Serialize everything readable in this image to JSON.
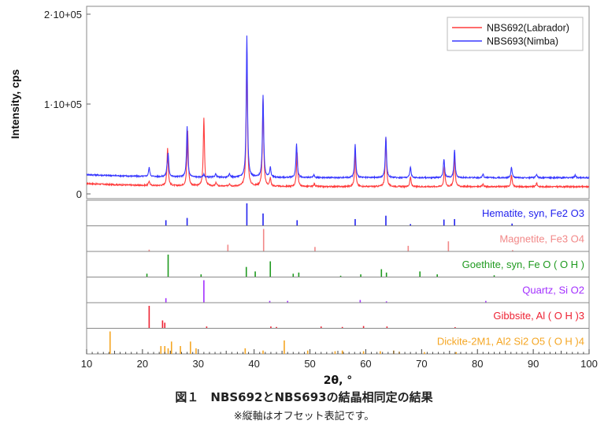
{
  "chart_data": {
    "type": "line",
    "xlabel": "2θ, °",
    "ylabel": "Intensity, cps",
    "xlim": [
      10,
      100
    ],
    "ylim": [
      0,
      200000
    ],
    "x_ticks": [
      10,
      20,
      30,
      40,
      50,
      60,
      70,
      80,
      90,
      100
    ],
    "y_ticks": [
      {
        "value": 0,
        "label": "0"
      },
      {
        "value": 100000,
        "label": "1·10+05"
      },
      {
        "value": 200000,
        "label": "2·10+05"
      }
    ],
    "legend_position": "top-right",
    "series": [
      {
        "name": "NBS692(Labrador)",
        "color": "#ff3b3b",
        "baseline": 8000,
        "peaks": [
          {
            "x": 21.2,
            "y": 5000
          },
          {
            "x": 24.5,
            "y": 42000
          },
          {
            "x": 28.0,
            "y": 7000
          },
          {
            "x": 28.1,
            "y": 57000
          },
          {
            "x": 31.0,
            "y": 76000
          },
          {
            "x": 33.2,
            "y": 4000
          },
          {
            "x": 35.6,
            "y": 3000
          },
          {
            "x": 38.7,
            "y": 152000
          },
          {
            "x": 41.6,
            "y": 98000
          },
          {
            "x": 42.9,
            "y": 9000
          },
          {
            "x": 47.7,
            "y": 38000
          },
          {
            "x": 50.8,
            "y": 3000
          },
          {
            "x": 58.1,
            "y": 38000
          },
          {
            "x": 63.6,
            "y": 55000
          },
          {
            "x": 68.0,
            "y": 11000
          },
          {
            "x": 74.1,
            "y": 22000
          },
          {
            "x": 75.9,
            "y": 35000
          },
          {
            "x": 81.0,
            "y": 3000
          },
          {
            "x": 86.1,
            "y": 13000
          },
          {
            "x": 90.6,
            "y": 4000
          }
        ]
      },
      {
        "name": "NBS693(Nimba)",
        "color": "#3838ff",
        "baseline": 18000,
        "peaks": [
          {
            "x": 21.2,
            "y": 10000
          },
          {
            "x": 24.4,
            "y": 7000
          },
          {
            "x": 24.6,
            "y": 24000
          },
          {
            "x": 28.0,
            "y": 56000
          },
          {
            "x": 31.0,
            "y": 3000
          },
          {
            "x": 33.1,
            "y": 4000
          },
          {
            "x": 35.6,
            "y": 4000
          },
          {
            "x": 38.7,
            "y": 158000
          },
          {
            "x": 41.6,
            "y": 92000
          },
          {
            "x": 42.9,
            "y": 11000
          },
          {
            "x": 47.6,
            "y": 38000
          },
          {
            "x": 50.7,
            "y": 3000
          },
          {
            "x": 58.1,
            "y": 37000
          },
          {
            "x": 63.6,
            "y": 46000
          },
          {
            "x": 68.0,
            "y": 12000
          },
          {
            "x": 74.0,
            "y": 21000
          },
          {
            "x": 75.9,
            "y": 31000
          },
          {
            "x": 81.0,
            "y": 4000
          },
          {
            "x": 86.1,
            "y": 12000
          },
          {
            "x": 90.6,
            "y": 4000
          },
          {
            "x": 97.5,
            "y": 3000
          }
        ]
      }
    ],
    "reference_phases": [
      {
        "label": "Hematite, syn, Fe2 O3",
        "color": "#2222ee",
        "lines": [
          [
            24.2,
            0.25
          ],
          [
            28.0,
            0.35
          ],
          [
            38.7,
            1.0
          ],
          [
            41.6,
            0.55
          ],
          [
            47.7,
            0.25
          ],
          [
            58.1,
            0.3
          ],
          [
            63.6,
            0.45
          ],
          [
            68.0,
            0.08
          ],
          [
            74.0,
            0.28
          ],
          [
            75.9,
            0.3
          ],
          [
            86.2,
            0.1
          ]
        ]
      },
      {
        "label": "Magnetite, Fe3 O4",
        "color": "#f28888",
        "lines": [
          [
            21.2,
            0.08
          ],
          [
            35.3,
            0.3
          ],
          [
            41.7,
            1.0
          ],
          [
            50.9,
            0.2
          ],
          [
            67.6,
            0.25
          ],
          [
            74.8,
            0.45
          ],
          [
            86.3,
            0.06
          ]
        ]
      },
      {
        "label": "Goethite, syn, Fe O ( O H )",
        "color": "#1f9a1f",
        "lines": [
          [
            20.8,
            0.15
          ],
          [
            24.6,
            1.0
          ],
          [
            30.5,
            0.12
          ],
          [
            38.6,
            0.45
          ],
          [
            40.2,
            0.25
          ],
          [
            42.9,
            0.7
          ],
          [
            47.0,
            0.15
          ],
          [
            48.0,
            0.2
          ],
          [
            55.5,
            0.06
          ],
          [
            59.1,
            0.12
          ],
          [
            62.8,
            0.35
          ],
          [
            63.7,
            0.2
          ],
          [
            69.7,
            0.25
          ],
          [
            72.8,
            0.12
          ],
          [
            83.0,
            0.08
          ]
        ]
      },
      {
        "label": "Quartz, Si O2",
        "color": "#a330ff",
        "lines": [
          [
            24.2,
            0.2
          ],
          [
            31.0,
            1.0
          ],
          [
            42.8,
            0.08
          ],
          [
            46.0,
            0.08
          ],
          [
            59.0,
            0.12
          ],
          [
            63.7,
            0.06
          ],
          [
            81.5,
            0.08
          ]
        ]
      },
      {
        "label": "Gibbsite, Al ( O H )3",
        "color": "#ee2233",
        "lines": [
          [
            21.2,
            1.0
          ],
          [
            23.6,
            0.35
          ],
          [
            24.0,
            0.25
          ],
          [
            31.5,
            0.08
          ],
          [
            43.0,
            0.08
          ],
          [
            44.0,
            0.06
          ],
          [
            52.0,
            0.08
          ],
          [
            55.8,
            0.06
          ],
          [
            59.6,
            0.1
          ],
          [
            63.8,
            0.08
          ],
          [
            76.0,
            0.05
          ]
        ]
      },
      {
        "label": "Dickite-2M1, Al2 Si2 O5 ( O H )4",
        "color": "#f5a623",
        "lines": [
          [
            14.2,
            1.0
          ],
          [
            23.3,
            0.35
          ],
          [
            24.0,
            0.35
          ],
          [
            24.6,
            0.25
          ],
          [
            25.2,
            0.55
          ],
          [
            26.8,
            0.35
          ],
          [
            28.6,
            0.55
          ],
          [
            29.6,
            0.25
          ],
          [
            38.4,
            0.25
          ],
          [
            41.6,
            0.15
          ],
          [
            45.4,
            0.6
          ],
          [
            49.6,
            0.15
          ],
          [
            54.5,
            0.12
          ],
          [
            55.8,
            0.15
          ],
          [
            59.6,
            0.12
          ],
          [
            62.6,
            0.12
          ],
          [
            65.0,
            0.15
          ],
          [
            66.0,
            0.1
          ],
          [
            70.5,
            0.08
          ],
          [
            76.2,
            0.08
          ]
        ]
      }
    ]
  },
  "caption": {
    "title": "図１　NBS692とNBS693の結晶相同定の結果",
    "note": "※縦軸はオフセット表記です。"
  }
}
